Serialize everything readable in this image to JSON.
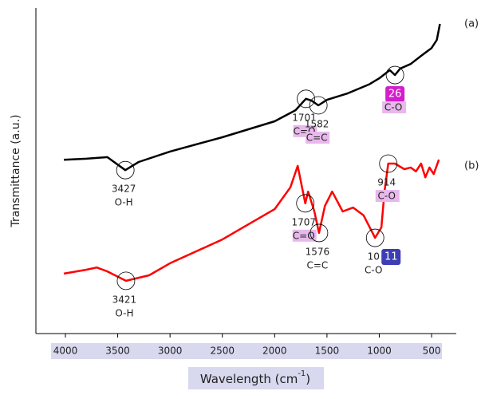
{
  "chart_data": {
    "type": "line",
    "y_label": "Transmittance (a.u.)",
    "x_label": "Wavelength (cm",
    "x_label_sup": "-1",
    "x_label_end": ")",
    "xlim": [
      4282,
      264
    ],
    "ylim": [
      0,
      100
    ],
    "xticks": [
      4000,
      3500,
      3000,
      2500,
      2000,
      1500,
      1000,
      500
    ],
    "series": [
      {
        "name": "(a)",
        "color": "#000000",
        "x": [
          4015,
          4000,
          3800,
          3600,
          3427,
          3300,
          3000,
          2500,
          2000,
          1800,
          1701,
          1650,
          1582,
          1500,
          1300,
          1100,
          1000,
          900,
          850,
          800,
          700,
          600,
          500,
          450,
          420
        ],
        "values": [
          53.4,
          53.4,
          53.7,
          54.2,
          50.2,
          52.7,
          55.9,
          60.3,
          65.2,
          68.6,
          72.1,
          71.6,
          70.1,
          71.8,
          73.8,
          76.5,
          78.4,
          80.9,
          79.4,
          81.4,
          82.8,
          85.3,
          87.7,
          90.2,
          95.1
        ],
        "annotations": [
          {
            "x": 3427,
            "text": "3427",
            "bond": "O-H",
            "highlight": false
          },
          {
            "x": 1701,
            "text": "1701",
            "bond": "C=O",
            "highlight": true
          },
          {
            "x": 1582,
            "text": "1582",
            "bond": "C=C",
            "highlight": true
          },
          {
            "x": 850,
            "badge": "26",
            "badge_color": "#d21fcb",
            "bond": "C-O",
            "highlight": true
          }
        ]
      },
      {
        "name": "(b)",
        "color": "#ff0000",
        "x": [
          4015,
          3800,
          3700,
          3600,
          3421,
          3200,
          3000,
          2500,
          2000,
          1850,
          1780,
          1707,
          1680,
          1620,
          1576,
          1520,
          1450,
          1350,
          1250,
          1150,
          1040,
          980,
          950,
          914,
          850,
          760,
          700,
          650,
          600,
          560,
          520,
          480,
          430
        ],
        "values": [
          18.4,
          19.6,
          20.3,
          19.1,
          16.2,
          17.9,
          21.6,
          28.9,
          38.2,
          44.9,
          51.5,
          40.0,
          43.6,
          37.5,
          30.9,
          39.2,
          43.6,
          37.5,
          38.7,
          36.3,
          29.4,
          32.6,
          43.6,
          52.2,
          52.2,
          50.5,
          51.0,
          49.8,
          52.2,
          48.0,
          51.0,
          49.0,
          53.4
        ],
        "annotations": [
          {
            "x": 3421,
            "text": "3421",
            "bond": "O-H",
            "highlight": false
          },
          {
            "x": 1707,
            "text": "1707",
            "bond": "C=O",
            "highlight": true
          },
          {
            "x": 1576,
            "text": "1576",
            "bond": "C=C",
            "highlight": false
          },
          {
            "x": 1040,
            "text": "10",
            "badge": "11",
            "badge_color": "#3d3db5",
            "bond": "C-O",
            "highlight": false
          },
          {
            "x": 914,
            "text": "914",
            "bond": "C-O",
            "highlight": true
          }
        ]
      }
    ]
  }
}
